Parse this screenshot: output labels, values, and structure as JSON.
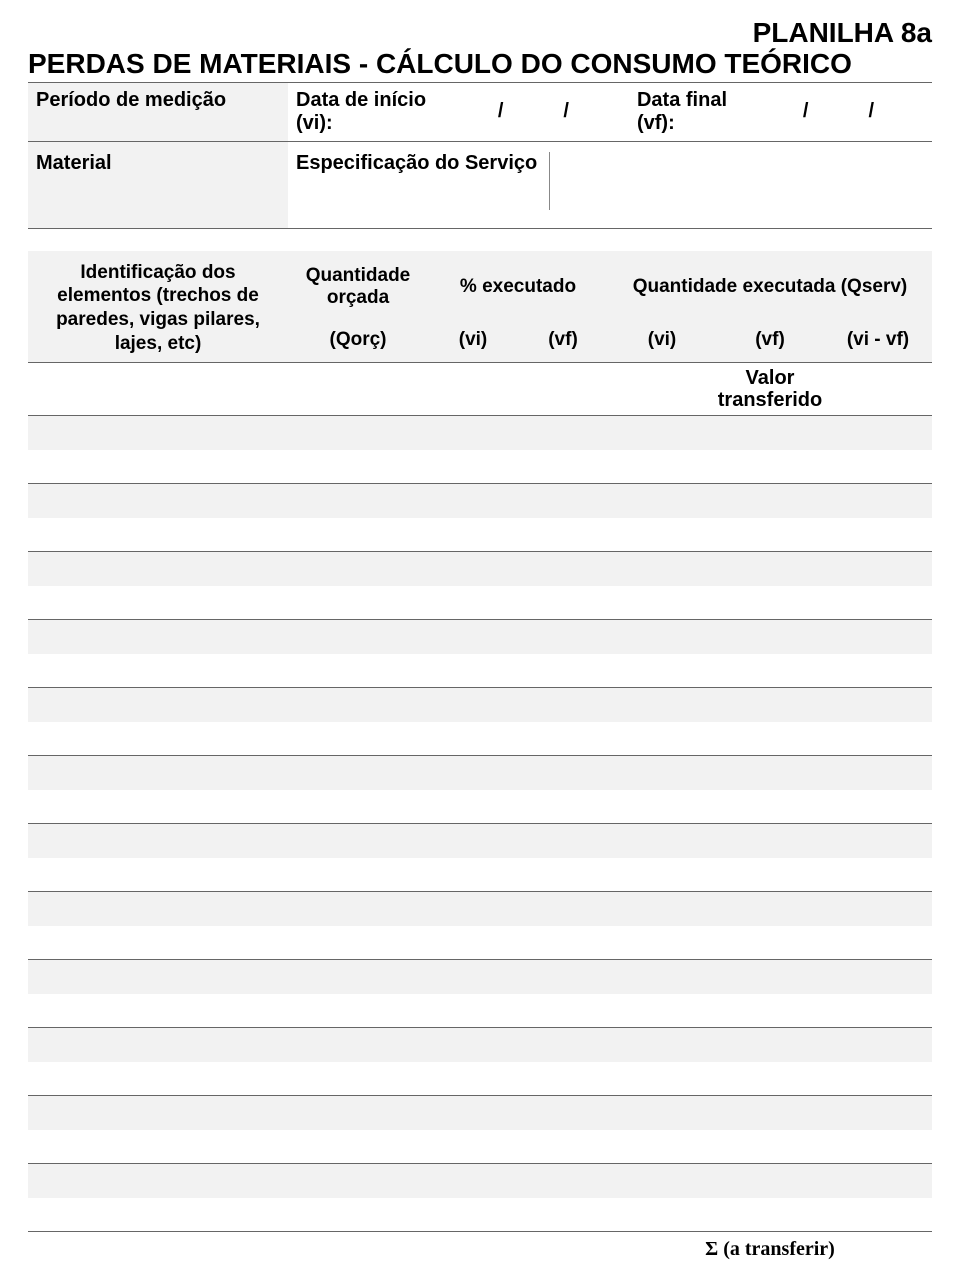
{
  "title_line1": "PLANILHA 8a",
  "title_line2": "PERDAS DE MATERIAIS - CÁLCULO DO CONSUMO TEÓRICO",
  "meta": {
    "periodo_label": "Período de medição",
    "data_inicio_label": "Data de início (vi):",
    "data_final_label": "Data final (vf):",
    "slash": "/",
    "material_label": "Material",
    "spec_label": "Especificação do Serviço"
  },
  "headers": {
    "ident": "Identificação dos elementos (trechos de paredes, vigas pilares, lajes, etc)",
    "qnt_orcada_top": "Quantidade orçada",
    "qnt_orcada_sub": "(Qorç)",
    "pct_exec": "% executado",
    "vi": "(vi)",
    "vf": "(vf)",
    "qnt_exec_top": "Quantidade executada (Qserv)",
    "diff": "(vi - vf)"
  },
  "valor_transferido_l1": "Valor",
  "valor_transferido_l2": "transferido",
  "footer": "Σ (a transferir)",
  "body_rows": 12,
  "colors": {
    "bg": "#ffffff",
    "alt_bg": "#f2f2f2",
    "border": "#666666",
    "text": "#000000"
  },
  "fonts": {
    "title_size_pt": 21,
    "header_size_pt": 14,
    "body_size_pt": 14
  }
}
